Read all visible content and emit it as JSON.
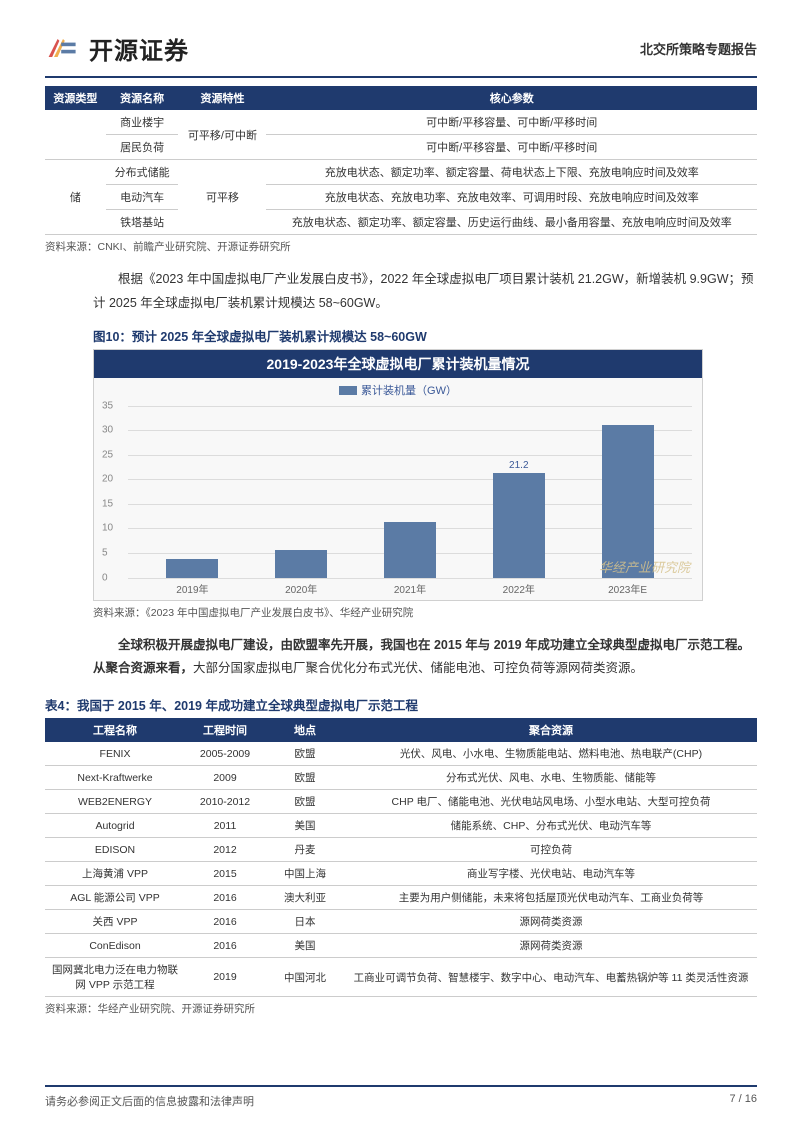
{
  "header": {
    "company_name": "开源证券",
    "report_type": "北交所策略专题报告",
    "logo_colors": {
      "red": "#d9534f",
      "orange": "#f0ad4e",
      "blue": "#5b7ba5"
    }
  },
  "table1": {
    "headers": [
      "资源类型",
      "资源名称",
      "资源特性",
      "核心参数"
    ],
    "rows": [
      {
        "type": "",
        "name": "商业楼宇",
        "trait_rowspan": "可平移/可中断",
        "param": "可中断/平移容量、可中断/平移时间"
      },
      {
        "type": "",
        "name": "居民负荷",
        "trait": "",
        "param": "可中断/平移容量、可中断/平移时间"
      },
      {
        "type_rowspan": "储",
        "name": "分布式储能",
        "trait_rowspan": "可平移",
        "param": "充放电状态、额定功率、额定容量、荷电状态上下限、充放电响应时间及效率"
      },
      {
        "name": "电动汽车",
        "param": "充放电状态、充放电功率、充放电效率、可调用时段、充放电响应时间及效率"
      },
      {
        "name": "铁塔基站",
        "param": "充放电状态、额定功率、额定容量、历史运行曲线、最小备用容量、充放电响应时间及效率"
      }
    ],
    "source": "资料来源：CNKI、前瞻产业研究院、开源证券研究所"
  },
  "para1": "根据《2023 年中国虚拟电厂产业发展白皮书》，2022 年全球虚拟电厂项目累计装机 21.2GW，新增装机 9.9GW；预计 2025 年全球虚拟电厂装机累计规模达 58~60GW。",
  "fig10": {
    "label": "图10：预计 2025 年全球虚拟电厂装机累计规模达 58~60GW",
    "title": "2019-2023年全球虚拟电厂累计装机量情况",
    "legend": "累计装机量（GW）",
    "type": "bar",
    "categories": [
      "2019年",
      "2020年",
      "2021年",
      "2022年",
      "2023年E"
    ],
    "values": [
      3.8,
      5.6,
      11.3,
      21.2,
      31.1
    ],
    "value_labels": [
      "",
      "",
      "",
      "21.2",
      ""
    ],
    "ylim": [
      0,
      35
    ],
    "yticks": [
      0,
      5,
      10,
      15,
      20,
      25,
      30,
      35
    ],
    "bar_color": "#5b7ba5",
    "grid_color": "#dcdcdc",
    "background_color": "#f8f8f8",
    "title_bg": "#1f3a6e",
    "watermark": "华经产业研究院",
    "source": "资料来源：《2023 年中国虚拟电厂产业发展白皮书》、华经产业研究院"
  },
  "para2_bold": "全球积极开展虚拟电厂建设，由欧盟率先开展，我国也在 2015 年与 2019 年成功建立全球典型虚拟电厂示范工程。从聚合资源来看，",
  "para2_rest": "大部分国家虚拟电厂聚合优化分布式光伏、储能电池、可控负荷等源网荷类资源。",
  "table4": {
    "title": "表4：我国于 2015 年、2019 年成功建立全球典型虚拟电厂示范工程",
    "headers": [
      "工程名称",
      "工程时间",
      "地点",
      "聚合资源"
    ],
    "rows": [
      [
        "FENIX",
        "2005-2009",
        "欧盟",
        "光伏、风电、小水电、生物质能电站、燃料电池、热电联产(CHP)"
      ],
      [
        "Next-Kraftwerke",
        "2009",
        "欧盟",
        "分布式光伏、风电、水电、生物质能、储能等"
      ],
      [
        "WEB2ENERGY",
        "2010-2012",
        "欧盟",
        "CHP 电厂、储能电池、光伏电站风电场、小型水电站、大型可控负荷"
      ],
      [
        "Autogrid",
        "2011",
        "美国",
        "储能系统、CHP、分布式光伏、电动汽车等"
      ],
      [
        "EDISON",
        "2012",
        "丹麦",
        "可控负荷"
      ],
      [
        "上海黄浦 VPP",
        "2015",
        "中国上海",
        "商业写字楼、光伏电站、电动汽车等"
      ],
      [
        "AGL 能源公司 VPP",
        "2016",
        "澳大利亚",
        "主要为用户侧储能，未来将包括屋顶光伏电动汽车、工商业负荷等"
      ],
      [
        "关西 VPP",
        "2016",
        "日本",
        "源网荷类资源"
      ],
      [
        "ConEdison",
        "2016",
        "美国",
        "源网荷类资源"
      ],
      [
        "国网冀北电力泛在电力物联网 VPP 示范工程",
        "2019",
        "中国河北",
        "工商业可调节负荷、智慧楼宇、数字中心、电动汽车、电蓄热锅炉等 11 类灵活性资源"
      ]
    ],
    "source": "资料来源：华经产业研究院、开源证券研究所"
  },
  "footer": {
    "disclaimer": "请务必参阅正文后面的信息披露和法律声明",
    "pagenum": "7 / 16"
  },
  "colors": {
    "brand_blue": "#1f3a6e",
    "text": "#333333",
    "grid": "#cccccc"
  }
}
